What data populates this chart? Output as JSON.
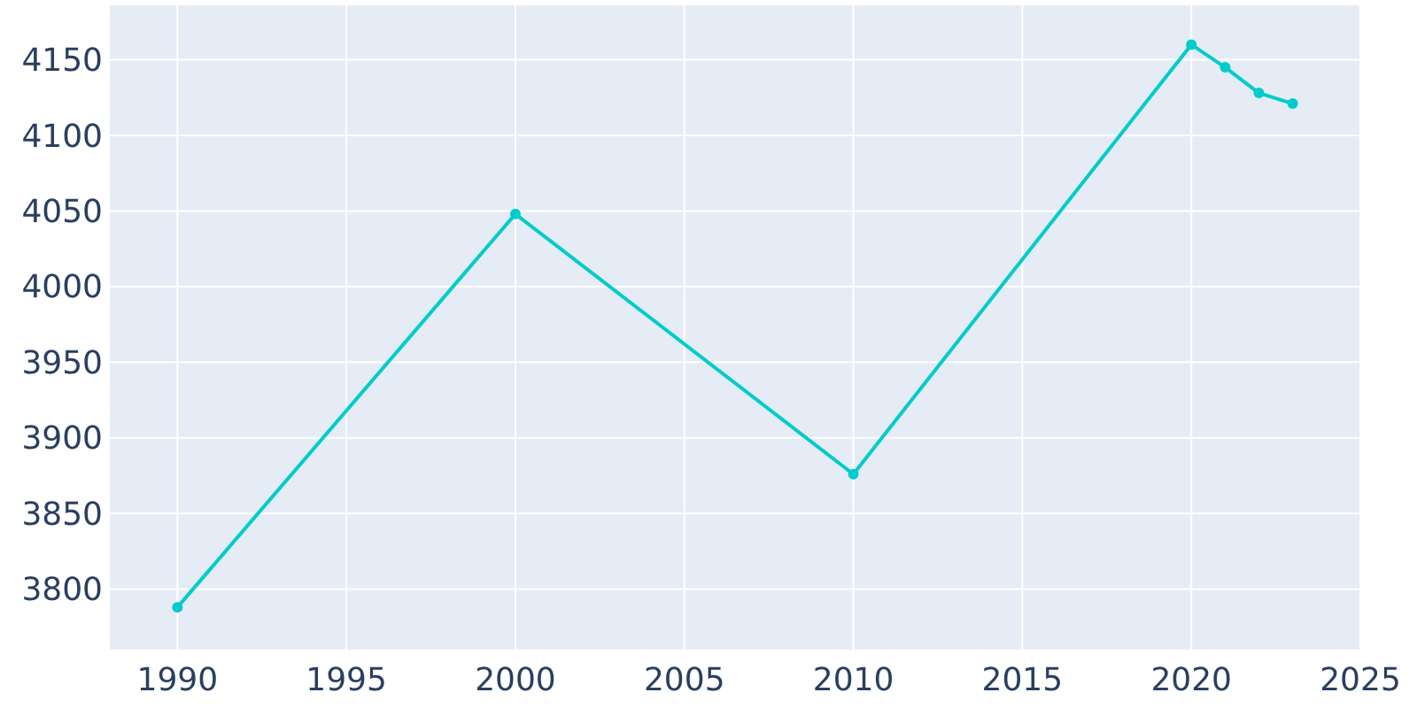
{
  "chart_data": {
    "type": "line",
    "x": [
      1990,
      2000,
      2010,
      2020,
      2021,
      2022,
      2023
    ],
    "series": [
      {
        "color": "#00cccc",
        "values": [
          3788,
          4048,
          3876,
          4160,
          4145,
          4128,
          4121
        ]
      }
    ],
    "xlim": [
      1988,
      2025
    ],
    "xticks": [
      1990,
      1995,
      2000,
      2005,
      2010,
      2015,
      2020,
      2025
    ],
    "ylim": [
      3760,
      4186
    ],
    "yticks": [
      3800,
      3850,
      3900,
      3950,
      4000,
      4050,
      4100,
      4150
    ],
    "grid": true,
    "marker": "circle",
    "line_style": "solid"
  }
}
